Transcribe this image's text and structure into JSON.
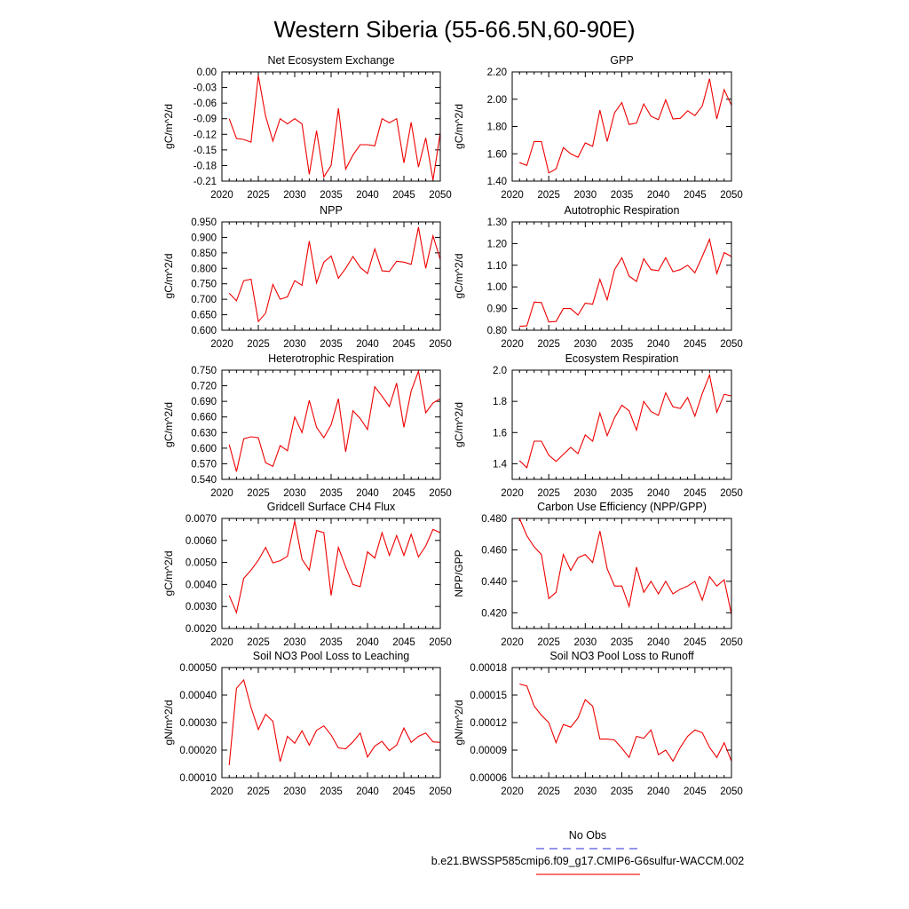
{
  "title": "Western Siberia (55-66.5N,60-90E)",
  "legend": {
    "entries": [
      {
        "label": "No Obs",
        "color": "#5555dd",
        "dash": true
      },
      {
        "label": "b.e21.BWSSP585cmip6.f09_g17.CMIP6-G6sulfur-WACCM.002",
        "color": "#ee2222",
        "dash": false
      }
    ]
  },
  "series_color": "#ee0000",
  "chart_data": [
    {
      "type": "line",
      "title": "Net Ecosystem Exchange",
      "ylabel": "gC/m^2/d",
      "xlim": [
        2020,
        2050
      ],
      "ylim": [
        -0.21,
        0.0
      ],
      "xticks": [
        2020,
        2025,
        2030,
        2035,
        2040,
        2045,
        2050
      ],
      "yticks": [
        -0.21,
        -0.18,
        -0.15,
        -0.12,
        -0.09,
        -0.06,
        -0.03,
        0.0
      ],
      "ytick_labels": [
        "-0.21",
        "-0.18",
        "-0.15",
        "-0.12",
        "-0.09",
        "-0.06",
        "-0.03",
        "0.00"
      ],
      "x": [
        2021,
        2022,
        2023,
        2024,
        2025,
        2026,
        2027,
        2028,
        2029,
        2030,
        2031,
        2032,
        2033,
        2034,
        2035,
        2036,
        2037,
        2038,
        2039,
        2040,
        2041,
        2042,
        2043,
        2044,
        2045,
        2046,
        2047,
        2048,
        2049,
        2050
      ],
      "values": [
        -0.09,
        -0.128,
        -0.13,
        -0.135,
        -0.007,
        -0.085,
        -0.133,
        -0.09,
        -0.1,
        -0.09,
        -0.1,
        -0.197,
        -0.113,
        -0.202,
        -0.18,
        -0.07,
        -0.187,
        -0.16,
        -0.14,
        -0.14,
        -0.142,
        -0.09,
        -0.098,
        -0.09,
        -0.175,
        -0.097,
        -0.183,
        -0.127,
        -0.208,
        -0.117
      ]
    },
    {
      "type": "line",
      "title": "GPP",
      "ylabel": "gC/m^2/d",
      "xlim": [
        2020,
        2050
      ],
      "ylim": [
        1.4,
        2.2
      ],
      "xticks": [
        2020,
        2025,
        2030,
        2035,
        2040,
        2045,
        2050
      ],
      "yticks": [
        1.4,
        1.6,
        1.8,
        2.0,
        2.2
      ],
      "ytick_labels": [
        "1.40",
        "1.60",
        "1.80",
        "2.00",
        "2.20"
      ],
      "x": [
        2021,
        2022,
        2023,
        2024,
        2025,
        2026,
        2027,
        2028,
        2029,
        2030,
        2031,
        2032,
        2033,
        2034,
        2035,
        2036,
        2037,
        2038,
        2039,
        2040,
        2041,
        2042,
        2043,
        2044,
        2045,
        2046,
        2047,
        2048,
        2049,
        2050
      ],
      "values": [
        1.535,
        1.515,
        1.69,
        1.69,
        1.46,
        1.49,
        1.645,
        1.6,
        1.575,
        1.68,
        1.655,
        1.92,
        1.69,
        1.9,
        1.975,
        1.815,
        1.825,
        1.965,
        1.875,
        1.85,
        1.995,
        1.855,
        1.86,
        1.915,
        1.88,
        1.95,
        2.15,
        1.855,
        2.07,
        1.955
      ]
    },
    {
      "type": "line",
      "title": "NPP",
      "ylabel": "gC/m^2/d",
      "xlim": [
        2020,
        2050
      ],
      "ylim": [
        0.6,
        0.95
      ],
      "xticks": [
        2020,
        2025,
        2030,
        2035,
        2040,
        2045,
        2050
      ],
      "yticks": [
        0.6,
        0.65,
        0.7,
        0.75,
        0.8,
        0.85,
        0.9,
        0.95
      ],
      "ytick_labels": [
        "0.600",
        "0.650",
        "0.700",
        "0.750",
        "0.800",
        "0.850",
        "0.900",
        "0.950"
      ],
      "x": [
        2021,
        2022,
        2023,
        2024,
        2025,
        2026,
        2027,
        2028,
        2029,
        2030,
        2031,
        2032,
        2033,
        2034,
        2035,
        2036,
        2037,
        2038,
        2039,
        2040,
        2041,
        2042,
        2043,
        2044,
        2045,
        2046,
        2047,
        2048,
        2049,
        2050
      ],
      "values": [
        0.72,
        0.695,
        0.76,
        0.765,
        0.628,
        0.655,
        0.748,
        0.7,
        0.708,
        0.76,
        0.745,
        0.888,
        0.753,
        0.82,
        0.84,
        0.768,
        0.8,
        0.838,
        0.803,
        0.783,
        0.863,
        0.792,
        0.79,
        0.823,
        0.82,
        0.813,
        0.933,
        0.8,
        0.905,
        0.828
      ]
    },
    {
      "type": "line",
      "title": "Autotrophic Respiration",
      "ylabel": "gC/m^2/d",
      "xlim": [
        2020,
        2050
      ],
      "ylim": [
        0.8,
        1.3
      ],
      "xticks": [
        2020,
        2025,
        2030,
        2035,
        2040,
        2045,
        2050
      ],
      "yticks": [
        0.8,
        0.9,
        1.0,
        1.1,
        1.2,
        1.3
      ],
      "ytick_labels": [
        "0.80",
        "0.90",
        "1.00",
        "1.10",
        "1.20",
        "1.30"
      ],
      "x": [
        2021,
        2022,
        2023,
        2024,
        2025,
        2026,
        2027,
        2028,
        2029,
        2030,
        2031,
        2032,
        2033,
        2034,
        2035,
        2036,
        2037,
        2038,
        2039,
        2040,
        2041,
        2042,
        2043,
        2044,
        2045,
        2046,
        2047,
        2048,
        2049,
        2050
      ],
      "values": [
        0.818,
        0.82,
        0.93,
        0.928,
        0.838,
        0.84,
        0.9,
        0.9,
        0.87,
        0.925,
        0.92,
        1.035,
        0.94,
        1.08,
        1.135,
        1.05,
        1.025,
        1.13,
        1.08,
        1.075,
        1.135,
        1.07,
        1.08,
        1.1,
        1.065,
        1.14,
        1.22,
        1.062,
        1.158,
        1.14
      ]
    },
    {
      "type": "line",
      "title": "Heterotrophic Respiration",
      "ylabel": "gC/m^2/d",
      "xlim": [
        2020,
        2050
      ],
      "ylim": [
        0.54,
        0.75
      ],
      "xticks": [
        2020,
        2025,
        2030,
        2035,
        2040,
        2045,
        2050
      ],
      "yticks": [
        0.54,
        0.57,
        0.6,
        0.63,
        0.66,
        0.69,
        0.72,
        0.75
      ],
      "ytick_labels": [
        "0.540",
        "0.570",
        "0.600",
        "0.630",
        "0.660",
        "0.690",
        "0.720",
        "0.750"
      ],
      "x": [
        2021,
        2022,
        2023,
        2024,
        2025,
        2026,
        2027,
        2028,
        2029,
        2030,
        2031,
        2032,
        2033,
        2034,
        2035,
        2036,
        2037,
        2038,
        2039,
        2040,
        2041,
        2042,
        2043,
        2044,
        2045,
        2046,
        2047,
        2048,
        2049,
        2050
      ],
      "values": [
        0.607,
        0.555,
        0.618,
        0.622,
        0.62,
        0.572,
        0.565,
        0.605,
        0.595,
        0.66,
        0.63,
        0.692,
        0.64,
        0.62,
        0.645,
        0.695,
        0.593,
        0.672,
        0.657,
        0.636,
        0.718,
        0.7,
        0.68,
        0.725,
        0.64,
        0.71,
        0.748,
        0.668,
        0.687,
        0.695
      ]
    },
    {
      "type": "line",
      "title": "Ecosystem Respiration",
      "ylabel": "gC/m^2/d",
      "xlim": [
        2020,
        2050
      ],
      "ylim": [
        1.3,
        2.0
      ],
      "xticks": [
        2020,
        2025,
        2030,
        2035,
        2040,
        2045,
        2050
      ],
      "yticks": [
        1.4,
        1.6,
        1.8,
        2.0
      ],
      "ytick_labels": [
        "1.4",
        "1.6",
        "1.8",
        "2.0"
      ],
      "x": [
        2021,
        2022,
        2023,
        2024,
        2025,
        2026,
        2027,
        2028,
        2029,
        2030,
        2031,
        2032,
        2033,
        2034,
        2035,
        2036,
        2037,
        2038,
        2039,
        2040,
        2041,
        2042,
        2043,
        2044,
        2045,
        2046,
        2047,
        2048,
        2049,
        2050
      ],
      "values": [
        1.42,
        1.375,
        1.545,
        1.545,
        1.455,
        1.415,
        1.46,
        1.505,
        1.465,
        1.585,
        1.545,
        1.725,
        1.58,
        1.695,
        1.775,
        1.74,
        1.615,
        1.8,
        1.735,
        1.71,
        1.855,
        1.765,
        1.755,
        1.825,
        1.705,
        1.85,
        1.97,
        1.73,
        1.845,
        1.835
      ]
    },
    {
      "type": "line",
      "title": "Gridcell Surface CH4 Flux",
      "ylabel": "gC/m^2/d",
      "xlim": [
        2020,
        2050
      ],
      "ylim": [
        0.002,
        0.007
      ],
      "xticks": [
        2020,
        2025,
        2030,
        2035,
        2040,
        2045,
        2050
      ],
      "yticks": [
        0.002,
        0.003,
        0.004,
        0.005,
        0.006,
        0.007
      ],
      "ytick_labels": [
        "0.0020",
        "0.0030",
        "0.0040",
        "0.0050",
        "0.0060",
        "0.0070"
      ],
      "x": [
        2021,
        2022,
        2023,
        2024,
        2025,
        2026,
        2027,
        2028,
        2029,
        2030,
        2031,
        2032,
        2033,
        2034,
        2035,
        2036,
        2037,
        2038,
        2039,
        2040,
        2041,
        2042,
        2043,
        2044,
        2045,
        2046,
        2047,
        2048,
        2049,
        2050
      ],
      "values": [
        0.0035,
        0.00272,
        0.00428,
        0.00465,
        0.0051,
        0.00568,
        0.00498,
        0.00508,
        0.00528,
        0.00688,
        0.00515,
        0.00465,
        0.00645,
        0.00635,
        0.0035,
        0.00568,
        0.0048,
        0.004,
        0.0039,
        0.00548,
        0.0052,
        0.00635,
        0.00532,
        0.00622,
        0.00532,
        0.00628,
        0.00525,
        0.00575,
        0.0065,
        0.00635
      ]
    },
    {
      "type": "line",
      "title": "Carbon Use Efficiency (NPP/GPP)",
      "ylabel": "NPP/GPP",
      "xlim": [
        2020,
        2050
      ],
      "ylim": [
        0.41,
        0.48
      ],
      "xticks": [
        2020,
        2025,
        2030,
        2035,
        2040,
        2045,
        2050
      ],
      "yticks": [
        0.42,
        0.44,
        0.46,
        0.48
      ],
      "ytick_labels": [
        "0.420",
        "0.440",
        "0.460",
        "0.480"
      ],
      "x": [
        2021,
        2022,
        2023,
        2024,
        2025,
        2026,
        2027,
        2028,
        2029,
        2030,
        2031,
        2032,
        2033,
        2034,
        2035,
        2036,
        2037,
        2038,
        2039,
        2040,
        2041,
        2042,
        2043,
        2044,
        2045,
        2046,
        2047,
        2048,
        2049,
        2050
      ],
      "values": [
        0.48,
        0.469,
        0.462,
        0.457,
        0.429,
        0.433,
        0.457,
        0.447,
        0.455,
        0.457,
        0.452,
        0.472,
        0.448,
        0.437,
        0.437,
        0.424,
        0.449,
        0.433,
        0.44,
        0.432,
        0.44,
        0.432,
        0.435,
        0.437,
        0.44,
        0.428,
        0.443,
        0.437,
        0.441,
        0.419
      ]
    },
    {
      "type": "line",
      "title": "Soil NO3 Pool Loss to Leaching",
      "ylabel": "gN/m^2/d",
      "xlim": [
        2020,
        2050
      ],
      "ylim": [
        0.0001,
        0.0005
      ],
      "xticks": [
        2020,
        2025,
        2030,
        2035,
        2040,
        2045,
        2050
      ],
      "yticks": [
        0.0001,
        0.0002,
        0.0003,
        0.0004,
        0.0005
      ],
      "ytick_labels": [
        "0.00010",
        "0.00020",
        "0.00030",
        "0.00040",
        "0.00050"
      ],
      "x": [
        2021,
        2022,
        2023,
        2024,
        2025,
        2026,
        2027,
        2028,
        2029,
        2030,
        2031,
        2032,
        2033,
        2034,
        2035,
        2036,
        2037,
        2038,
        2039,
        2040,
        2041,
        2042,
        2043,
        2044,
        2045,
        2046,
        2047,
        2048,
        2049,
        2050
      ],
      "values": [
        0.000145,
        0.000425,
        0.000455,
        0.000355,
        0.000275,
        0.00033,
        0.000305,
        0.000158,
        0.00025,
        0.000225,
        0.00027,
        0.000218,
        0.000272,
        0.000288,
        0.000255,
        0.000208,
        0.000205,
        0.00023,
        0.000262,
        0.000175,
        0.000215,
        0.000232,
        0.000198,
        0.000218,
        0.00028,
        0.000228,
        0.00025,
        0.000262,
        0.00023,
        0.000228
      ]
    },
    {
      "type": "line",
      "title": "Soil NO3 Pool Loss to Runoff",
      "ylabel": "gN/m^2/d",
      "xlim": [
        2020,
        2050
      ],
      "ylim": [
        6e-05,
        0.00018
      ],
      "xticks": [
        2020,
        2025,
        2030,
        2035,
        2040,
        2045,
        2050
      ],
      "yticks": [
        6e-05,
        9e-05,
        0.00012,
        0.00015,
        0.00018
      ],
      "ytick_labels": [
        "0.00006",
        "0.00009",
        "0.00012",
        "0.00015",
        "0.00018"
      ],
      "x": [
        2021,
        2022,
        2023,
        2024,
        2025,
        2026,
        2027,
        2028,
        2029,
        2030,
        2031,
        2032,
        2033,
        2034,
        2035,
        2036,
        2037,
        2038,
        2039,
        2040,
        2041,
        2042,
        2043,
        2044,
        2045,
        2046,
        2047,
        2048,
        2049,
        2050
      ],
      "values": [
        0.000162,
        0.00016,
        0.000138,
        0.000128,
        0.00012,
        9.8e-05,
        0.000118,
        0.000115,
        0.000125,
        0.000145,
        0.000138,
        0.000102,
        0.000102,
        0.000101,
        9.2e-05,
        8.2e-05,
        0.000105,
        0.000103,
        0.000112,
        8.5e-05,
        9e-05,
        7.8e-05,
        9.3e-05,
        0.000105,
        0.000112,
        0.000109,
        9.3e-05,
        8.2e-05,
        9.8e-05,
        7.8e-05
      ]
    }
  ]
}
